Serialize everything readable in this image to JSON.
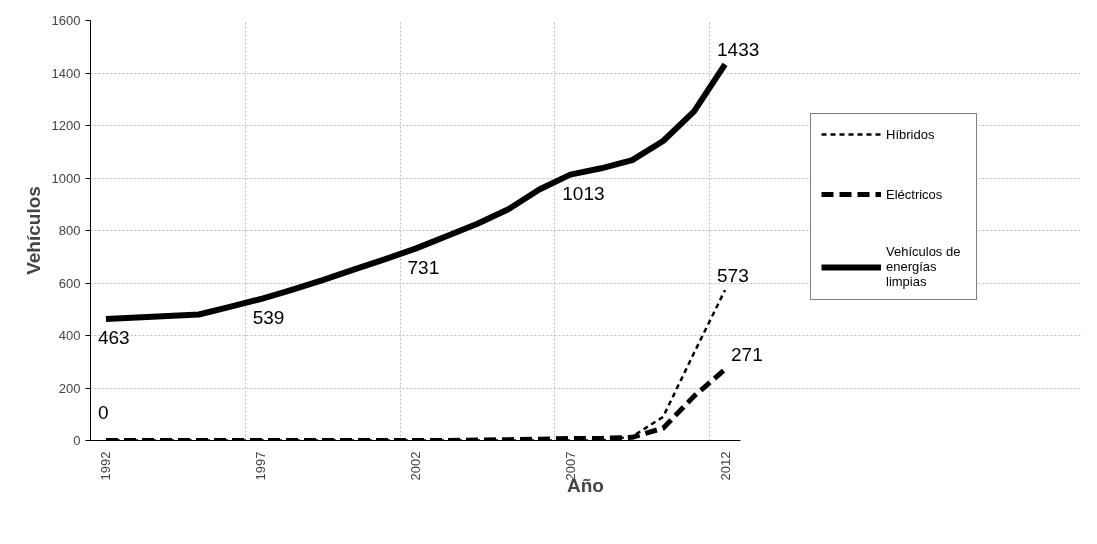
{
  "chart_data": {
    "type": "line",
    "xlabel": "Año",
    "ylabel": "Vehículos",
    "categories": [
      "1992",
      null,
      null,
      null,
      null,
      "1997",
      null,
      null,
      null,
      null,
      "2002",
      null,
      null,
      null,
      null,
      "2007",
      null,
      null,
      null,
      null,
      "2012"
    ],
    "series": [
      {
        "name": "Híbridos",
        "color": "#000000",
        "line_style": "dashed",
        "values": [
          0,
          0,
          0,
          0,
          0,
          0,
          0,
          0,
          0,
          0,
          0,
          0,
          0,
          0,
          0,
          0,
          0,
          15,
          90,
          334,
          573
        ],
        "value_labels": [
          "0",
          null,
          null,
          null,
          null,
          null,
          null,
          null,
          null,
          null,
          null,
          null,
          null,
          null,
          null,
          null,
          null,
          null,
          null,
          null,
          "573"
        ]
      },
      {
        "name": "Eléctricos",
        "color": "#000000",
        "line_style": "dashed",
        "values": [
          0,
          0,
          0,
          0,
          0,
          0,
          0,
          0,
          0,
          0,
          0,
          0,
          2,
          3,
          5,
          8,
          8,
          12,
          47,
          169,
          271
        ],
        "value_labels": [
          null,
          null,
          null,
          null,
          null,
          null,
          null,
          null,
          null,
          null,
          null,
          null,
          null,
          null,
          null,
          null,
          null,
          null,
          null,
          null,
          "271"
        ]
      },
      {
        "name": "Vehículos de energías limpias",
        "color": "#000000",
        "line_style": "solid",
        "values": [
          463,
          469,
          474,
          480,
          509,
          539,
          574,
          611,
          651,
          690,
          731,
          778,
          826,
          881,
          956,
          1013,
          1037,
          1068,
          1141,
          1254,
          1433
        ],
        "value_labels": [
          "463",
          null,
          null,
          null,
          null,
          "539",
          null,
          null,
          null,
          null,
          "731",
          null,
          null,
          null,
          null,
          "1013",
          null,
          null,
          null,
          null,
          "1433"
        ]
      }
    ],
    "ylim": [
      0,
      1600
    ],
    "yticks": [
      0,
      200,
      400,
      600,
      800,
      1000,
      1200,
      1400,
      1600
    ],
    "grid": true,
    "legend": "right",
    "marker": "none"
  }
}
